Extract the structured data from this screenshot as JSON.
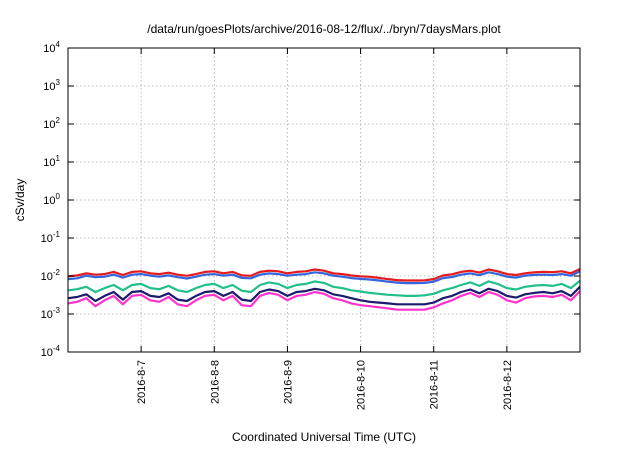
{
  "chart_data": {
    "type": "line",
    "title": "/data/run/goesPlots/archive/2016-08-12/flux/../bryn/7daysMars.plot",
    "xlabel": "Coordinated Universal Time (UTC)",
    "ylabel": "cSv/day",
    "yscale": "log",
    "ylim": [
      0.0001,
      10000
    ],
    "y_ticks": [
      {
        "base": "10",
        "exp": "-4",
        "value": 0.0001
      },
      {
        "base": "10",
        "exp": "-3",
        "value": 0.001
      },
      {
        "base": "10",
        "exp": "-2",
        "value": 0.01
      },
      {
        "base": "10",
        "exp": "-1",
        "value": 0.1
      },
      {
        "base": "10",
        "exp": "0",
        "value": 1
      },
      {
        "base": "10",
        "exp": "1",
        "value": 10
      },
      {
        "base": "10",
        "exp": "2",
        "value": 100
      },
      {
        "base": "10",
        "exp": "3",
        "value": 1000
      },
      {
        "base": "10",
        "exp": "4",
        "value": 10000
      }
    ],
    "xlim": [
      "2016-08-06T00:00",
      "2016-08-13T00:00"
    ],
    "x_ticks": [
      {
        "label": "2016-8-7",
        "value": "2016-08-07T00:00"
      },
      {
        "label": "2016-8-8",
        "value": "2016-08-08T00:00"
      },
      {
        "label": "2016-8-9",
        "value": "2016-08-09T00:00"
      },
      {
        "label": "2016-8-10",
        "value": "2016-08-10T00:00"
      },
      {
        "label": "2016-8-11",
        "value": "2016-08-11T00:00"
      },
      {
        "label": "2016-8-12",
        "value": "2016-08-12T00:00"
      }
    ],
    "grid": true,
    "legend": "none",
    "x": [
      "2016-08-06T00:00",
      "2016-08-06T03:00",
      "2016-08-06T06:00",
      "2016-08-06T09:00",
      "2016-08-06T12:00",
      "2016-08-06T15:00",
      "2016-08-06T18:00",
      "2016-08-06T21:00",
      "2016-08-07T00:00",
      "2016-08-07T03:00",
      "2016-08-07T06:00",
      "2016-08-07T09:00",
      "2016-08-07T12:00",
      "2016-08-07T15:00",
      "2016-08-07T18:00",
      "2016-08-07T21:00",
      "2016-08-08T00:00",
      "2016-08-08T03:00",
      "2016-08-08T06:00",
      "2016-08-08T09:00",
      "2016-08-08T12:00",
      "2016-08-08T15:00",
      "2016-08-08T18:00",
      "2016-08-08T21:00",
      "2016-08-09T00:00",
      "2016-08-09T03:00",
      "2016-08-09T06:00",
      "2016-08-09T09:00",
      "2016-08-09T12:00",
      "2016-08-09T15:00",
      "2016-08-09T18:00",
      "2016-08-09T21:00",
      "2016-08-10T00:00",
      "2016-08-10T03:00",
      "2016-08-10T06:00",
      "2016-08-10T09:00",
      "2016-08-10T12:00",
      "2016-08-10T15:00",
      "2016-08-10T18:00",
      "2016-08-10T21:00",
      "2016-08-11T00:00",
      "2016-08-11T03:00",
      "2016-08-11T06:00",
      "2016-08-11T09:00",
      "2016-08-11T12:00",
      "2016-08-11T15:00",
      "2016-08-11T18:00",
      "2016-08-11T21:00",
      "2016-08-12T00:00",
      "2016-08-12T03:00",
      "2016-08-12T06:00",
      "2016-08-12T09:00",
      "2016-08-12T12:00",
      "2016-08-12T15:00",
      "2016-08-12T18:00",
      "2016-08-12T21:00",
      "2016-08-13T00:00"
    ],
    "series": [
      {
        "color": "#e41a1c",
        "values": [
          0.0098,
          0.0103,
          0.0118,
          0.0108,
          0.0112,
          0.0128,
          0.0106,
          0.0128,
          0.0133,
          0.0118,
          0.0112,
          0.0122,
          0.0108,
          0.0101,
          0.0112,
          0.0128,
          0.0133,
          0.0118,
          0.0128,
          0.0104,
          0.0101,
          0.0128,
          0.0138,
          0.0133,
          0.0118,
          0.0128,
          0.0133,
          0.0148,
          0.0138,
          0.0118,
          0.0112,
          0.0103,
          0.0098,
          0.0095,
          0.0089,
          0.0083,
          0.0078,
          0.0076,
          0.0076,
          0.0077,
          0.0083,
          0.0103,
          0.0111,
          0.0128,
          0.0138,
          0.0123,
          0.0148,
          0.0133,
          0.0112,
          0.0106,
          0.0118,
          0.0125,
          0.0128,
          0.0126,
          0.0133,
          0.0118,
          0.0153
        ]
      },
      {
        "color": "#3366dd",
        "values": [
          0.0083,
          0.0087,
          0.0102,
          0.0093,
          0.0096,
          0.0108,
          0.0091,
          0.0108,
          0.0112,
          0.0102,
          0.0096,
          0.0104,
          0.0093,
          0.0086,
          0.0096,
          0.0108,
          0.0112,
          0.0102,
          0.0108,
          0.0089,
          0.0087,
          0.0108,
          0.0117,
          0.0112,
          0.0102,
          0.0108,
          0.0112,
          0.0125,
          0.0117,
          0.0102,
          0.0096,
          0.0088,
          0.0084,
          0.0081,
          0.0076,
          0.0071,
          0.0067,
          0.0065,
          0.0065,
          0.0066,
          0.0071,
          0.0088,
          0.0094,
          0.0108,
          0.0117,
          0.0105,
          0.0125,
          0.0112,
          0.0096,
          0.0091,
          0.0102,
          0.0107,
          0.0108,
          0.0106,
          0.0112,
          0.0102,
          0.0133
        ]
      },
      {
        "color": "#21c08b",
        "values": [
          0.0042,
          0.0045,
          0.0052,
          0.0038,
          0.0048,
          0.0058,
          0.0042,
          0.0058,
          0.0062,
          0.0048,
          0.0045,
          0.0055,
          0.0042,
          0.0038,
          0.0048,
          0.0058,
          0.0062,
          0.0048,
          0.0058,
          0.0041,
          0.0038,
          0.0058,
          0.0068,
          0.0062,
          0.0048,
          0.0058,
          0.0062,
          0.0072,
          0.0066,
          0.0052,
          0.0048,
          0.0042,
          0.0039,
          0.0036,
          0.0034,
          0.0032,
          0.0031,
          0.003,
          0.003,
          0.0031,
          0.0034,
          0.0042,
          0.0048,
          0.0058,
          0.0068,
          0.0055,
          0.0072,
          0.0062,
          0.0048,
          0.0044,
          0.0052,
          0.0056,
          0.0058,
          0.0055,
          0.0062,
          0.0048,
          0.0075
        ]
      },
      {
        "color": "#1b1b6b",
        "values": [
          0.0026,
          0.0028,
          0.0033,
          0.0022,
          0.003,
          0.0038,
          0.0024,
          0.0038,
          0.004,
          0.003,
          0.0028,
          0.0035,
          0.0024,
          0.0022,
          0.003,
          0.0038,
          0.004,
          0.003,
          0.0038,
          0.0024,
          0.0022,
          0.0038,
          0.0044,
          0.004,
          0.003,
          0.0038,
          0.004,
          0.0046,
          0.0042,
          0.0033,
          0.003,
          0.0026,
          0.0023,
          0.0021,
          0.002,
          0.0019,
          0.0018,
          0.0018,
          0.0018,
          0.0018,
          0.002,
          0.0026,
          0.003,
          0.0038,
          0.0044,
          0.0035,
          0.0046,
          0.004,
          0.003,
          0.0027,
          0.0033,
          0.0036,
          0.0038,
          0.0035,
          0.004,
          0.003,
          0.0052
        ]
      },
      {
        "color": "#ff33cc",
        "values": [
          0.0019,
          0.0021,
          0.0026,
          0.0016,
          0.0023,
          0.003,
          0.0018,
          0.003,
          0.0032,
          0.0023,
          0.0021,
          0.0028,
          0.0018,
          0.0016,
          0.0023,
          0.003,
          0.0032,
          0.0023,
          0.003,
          0.0017,
          0.0016,
          0.003,
          0.0036,
          0.0032,
          0.0023,
          0.003,
          0.0032,
          0.0038,
          0.0034,
          0.0026,
          0.0023,
          0.0019,
          0.0017,
          0.0016,
          0.0015,
          0.0014,
          0.0013,
          0.0013,
          0.0013,
          0.0013,
          0.0015,
          0.0019,
          0.0023,
          0.003,
          0.0036,
          0.0028,
          0.0038,
          0.0032,
          0.0023,
          0.002,
          0.0026,
          0.0029,
          0.003,
          0.0028,
          0.0032,
          0.0023,
          0.004
        ]
      }
    ]
  }
}
